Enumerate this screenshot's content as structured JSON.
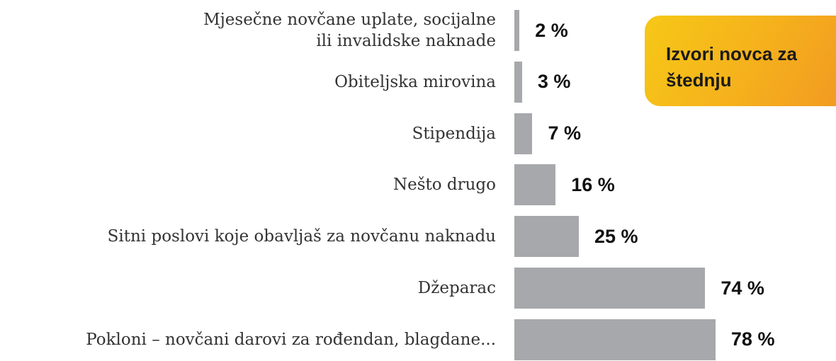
{
  "chart_data": {
    "type": "barh",
    "title": "Izvori novca za štednju",
    "categories": [
      "Mjesečne novčane uplate, socijalne\nili invalidske naknade",
      "Obiteljska mirovina",
      "Stipendija",
      "Nešto drugo",
      "Sitni poslovi koje obavljaš za novčanu naknadu",
      "Džeparac",
      "Pokloni – novčani darovi za rođendan, blagdane..."
    ],
    "values": [
      2,
      3,
      7,
      16,
      25,
      74,
      78
    ],
    "value_labels": [
      "2 %",
      "3 %",
      "7 %",
      "16 %",
      "25 %",
      "74 %",
      "78 %"
    ],
    "color": "#a7a8ac"
  }
}
